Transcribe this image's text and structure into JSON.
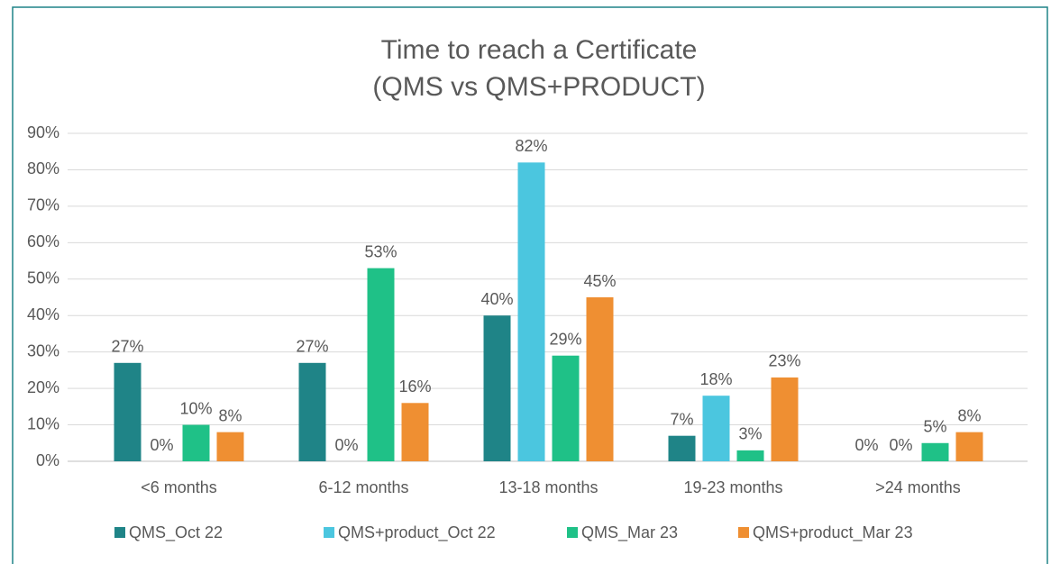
{
  "chart_data": {
    "type": "bar",
    "title": [
      "Time to reach a Certificate",
      "(QMS vs QMS+PRODUCT)"
    ],
    "categories": [
      "<6 months",
      "6-12 months",
      "13-18 months",
      "19-23 months",
      ">24 months"
    ],
    "series": [
      {
        "name": "QMS_Oct 22",
        "color": "#1f8487",
        "values": [
          27,
          27,
          40,
          7,
          0
        ],
        "value_labels": [
          "27%",
          "27%",
          "40%",
          "7%",
          "0%"
        ]
      },
      {
        "name": "QMS+product_Oct 22",
        "color": "#4bc6df",
        "values": [
          0,
          0,
          82,
          18,
          0
        ],
        "value_labels": [
          "0%",
          "0%",
          "82%",
          "18%",
          "0%"
        ]
      },
      {
        "name": "QMS_Mar 23",
        "color": "#1fc187",
        "values": [
          10,
          53,
          29,
          3,
          5
        ],
        "value_labels": [
          "10%",
          "53%",
          "29%",
          "3%",
          "5%"
        ]
      },
      {
        "name": "QMS+product_Mar 23",
        "color": "#ef8f32",
        "values": [
          8,
          16,
          45,
          23,
          8
        ],
        "value_labels": [
          "8%",
          "16%",
          "45%",
          "23%",
          "8%"
        ]
      }
    ],
    "ylim": [
      0,
      90
    ],
    "yticks": [
      {
        "value": 0,
        "label": "0%"
      },
      {
        "value": 10,
        "label": "10%"
      },
      {
        "value": 20,
        "label": "20%"
      },
      {
        "value": 30,
        "label": "30%"
      },
      {
        "value": 40,
        "label": "40%"
      },
      {
        "value": 50,
        "label": "50%"
      },
      {
        "value": 60,
        "label": "60%"
      },
      {
        "value": 70,
        "label": "70%"
      },
      {
        "value": 80,
        "label": "80%"
      },
      {
        "value": 90,
        "label": "90%"
      }
    ],
    "grid": true,
    "legend": "bottom"
  }
}
